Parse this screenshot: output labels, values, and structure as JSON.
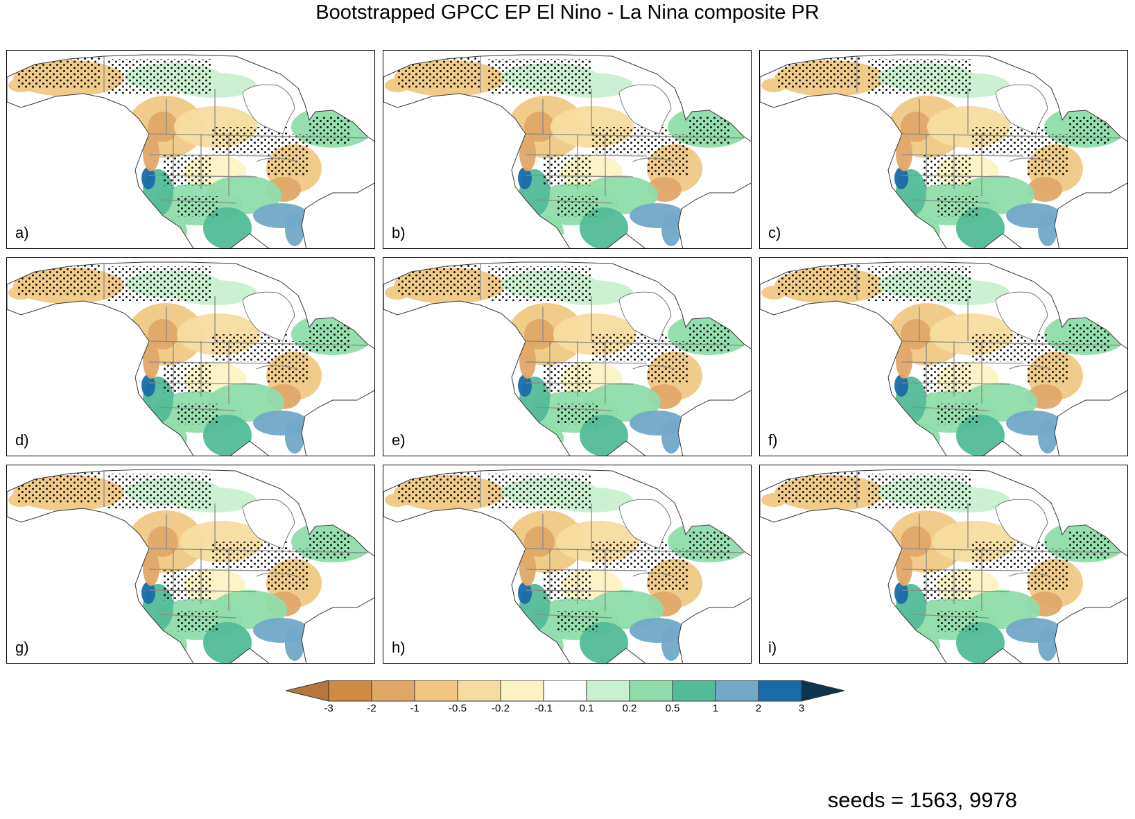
{
  "title": "Bootstrapped GPCC EP El Nino - La Nina composite PR",
  "panels": [
    {
      "label": "a)"
    },
    {
      "label": "b)"
    },
    {
      "label": "c)"
    },
    {
      "label": "d)"
    },
    {
      "label": "e)"
    },
    {
      "label": "f)"
    },
    {
      "label": "g)"
    },
    {
      "label": "h)"
    },
    {
      "label": "i)"
    }
  ],
  "colorbar": {
    "ticks": [
      "-3",
      "-2",
      "-1",
      "-0.5",
      "-0.2",
      "-0.1",
      "0.1",
      "0.2",
      "0.5",
      "1",
      "2",
      "3"
    ],
    "colors": [
      "#b8773a",
      "#cf8a45",
      "#e0a868",
      "#f0c884",
      "#f5dca0",
      "#fcf3c4",
      "#ffffff",
      "#c9f0d0",
      "#8fdcaa",
      "#52bc98",
      "#72a8c8",
      "#1a6aa8",
      "#0e3550"
    ]
  },
  "footer": "seeds = 1563, 9978"
}
